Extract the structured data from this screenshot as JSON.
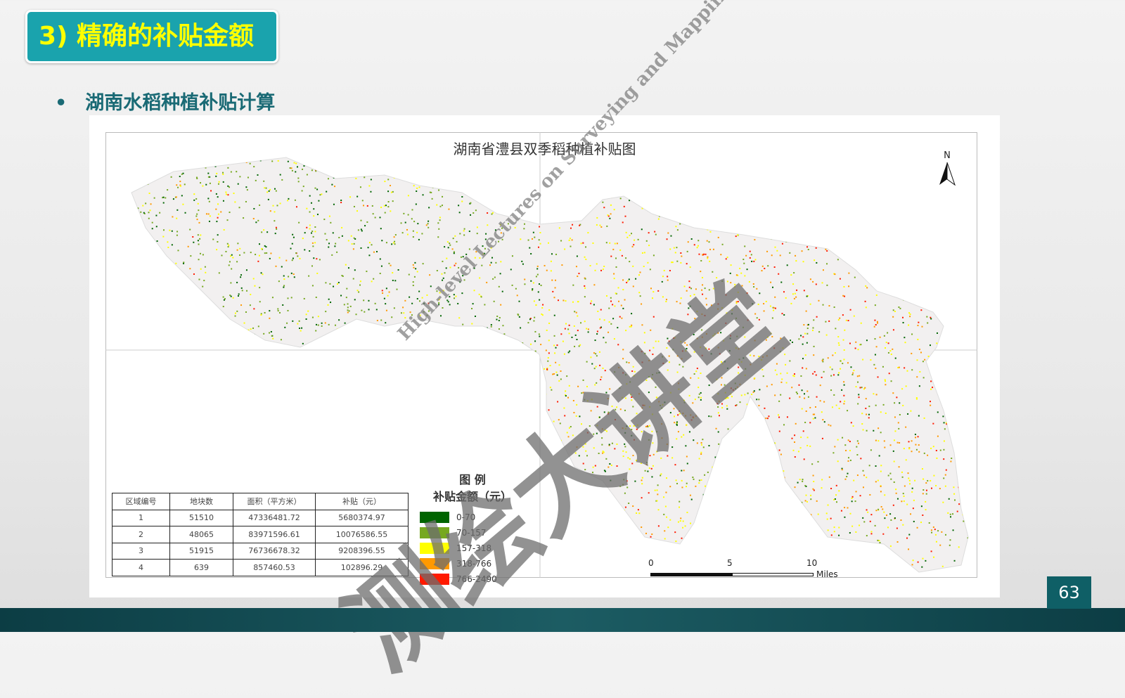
{
  "slide": {
    "title": "3) 精确的补贴金额",
    "bullet": "湖南水稻种植补贴计算",
    "page_number": "63"
  },
  "map": {
    "title": "湖南省澧县双季稻种植补贴图",
    "north_label": "N",
    "table": {
      "headers": [
        "区域编号",
        "地块数",
        "面积（平方米）",
        "补贴（元）"
      ],
      "rows": [
        [
          "1",
          "51510",
          "47336481.72",
          "5680374.97"
        ],
        [
          "2",
          "48065",
          "83971596.61",
          "10076586.55"
        ],
        [
          "3",
          "51915",
          "76736678.32",
          "9208396.55"
        ],
        [
          "4",
          "639",
          "857460.53",
          "102896.29"
        ]
      ]
    },
    "legend": {
      "title": "图  例",
      "subtitle": "补贴金额（元）",
      "items": [
        {
          "label": "0-70",
          "color": "#006400"
        },
        {
          "label": "70-157",
          "color": "#76a820"
        },
        {
          "label": "157-318",
          "color": "#ffff00"
        },
        {
          "label": "318-766",
          "color": "#ff9900"
        },
        {
          "label": "766-2490",
          "color": "#ff1a00"
        }
      ]
    },
    "scale_bar": {
      "ticks": [
        "0",
        "5",
        "10"
      ],
      "unit": "Miles"
    }
  },
  "watermark": {
    "main": "测绘大讲堂",
    "sub": "High-level Lectures on Surveying and Mapping"
  }
}
